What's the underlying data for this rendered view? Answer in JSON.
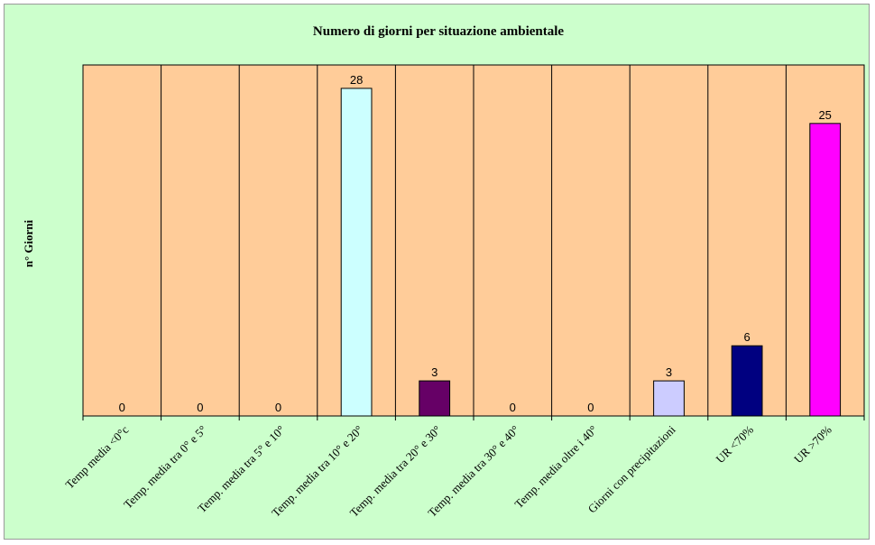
{
  "chart_data": {
    "type": "bar",
    "title": "Numero di giorni per situazione ambientale",
    "xlabel": "",
    "ylabel": "n° Giorni",
    "ylim": [
      0,
      30
    ],
    "grid": false,
    "categories": [
      "Temp media <0°c",
      "Temp. media tra 0° e 5°",
      "Temp. media tra 5° e 10°",
      "Temp. media tra 10° e 20°",
      "Temp. media tra 20° e 30°",
      "Temp. media tra 30° e 40°",
      "Temp. media oltre i 40°",
      "Giorni con precipitazioni",
      "UR <70%",
      "UR >70%"
    ],
    "values": [
      0,
      0,
      0,
      28,
      3,
      0,
      0,
      3,
      6,
      25
    ],
    "bar_colors": [
      "#ccffff",
      "#ccffff",
      "#ccffff",
      "#ccffff",
      "#660066",
      "#660066",
      "#660066",
      "#ccccff",
      "#000080",
      "#ff00ff"
    ],
    "plot_background": "#ffcc99",
    "chart_background": "#ccffcc",
    "legend": "none"
  }
}
